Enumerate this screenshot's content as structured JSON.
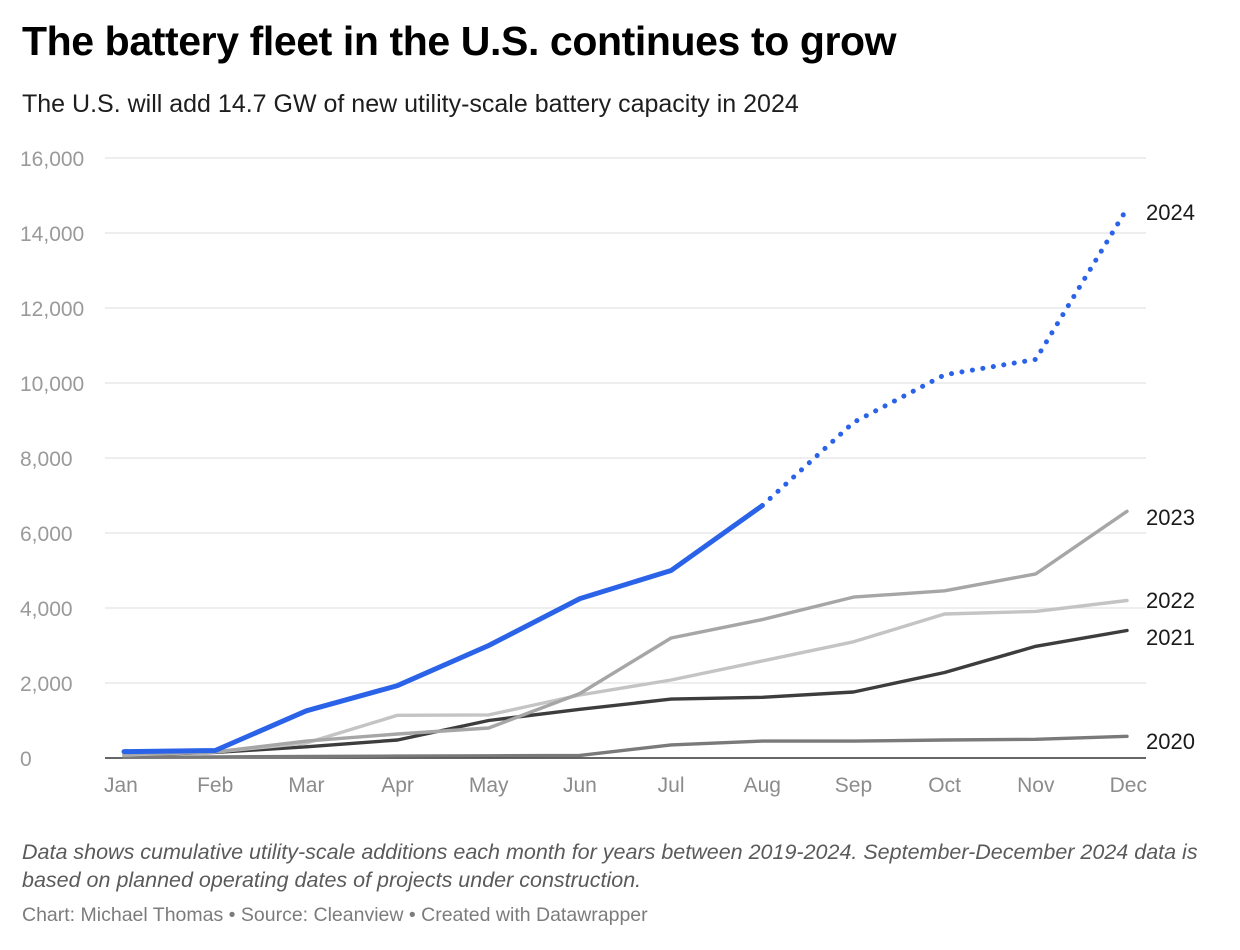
{
  "chart_data": {
    "type": "line",
    "title": "The battery fleet in the U.S. continues to grow",
    "subtitle": "The U.S. will add 14.7 GW of new utility-scale battery capacity in 2024",
    "xlabel": "",
    "ylabel": "",
    "categories": [
      "Jan",
      "Feb",
      "Mar",
      "Apr",
      "May",
      "Jun",
      "Jul",
      "Aug",
      "Sep",
      "Oct",
      "Nov",
      "Dec"
    ],
    "ylim": [
      0,
      16000
    ],
    "yticks": [
      0,
      2000,
      4000,
      6000,
      8000,
      10000,
      12000,
      14000,
      16000
    ],
    "ytick_labels": [
      "0",
      "2,000",
      "4,000",
      "6,000",
      "8,000",
      "10,000",
      "12,000",
      "14,000",
      "16,000"
    ],
    "grid": true,
    "series": [
      {
        "name": "2020",
        "color": "#7a7a7a",
        "values": [
          20,
          30,
          40,
          50,
          60,
          70,
          350,
          450,
          450,
          480,
          500,
          580
        ]
      },
      {
        "name": "2021",
        "color": "#3d3d3d",
        "values": [
          80,
          150,
          300,
          480,
          1000,
          1300,
          1570,
          1620,
          1760,
          2280,
          2980,
          3400
        ]
      },
      {
        "name": "2022",
        "color": "#c4c4c4",
        "values": [
          80,
          160,
          400,
          1140,
          1150,
          1680,
          2080,
          2590,
          3100,
          3840,
          3910,
          4200
        ]
      },
      {
        "name": "2023",
        "color": "#a6a6a6",
        "values": [
          100,
          160,
          450,
          640,
          800,
          1720,
          3200,
          3690,
          4290,
          4460,
          4910,
          6580
        ]
      },
      {
        "name": "2024",
        "color": "#2b63e8",
        "values": [
          170,
          200,
          1260,
          1930,
          3000,
          4250,
          5000,
          6730,
          8950,
          10220,
          10630,
          14650
        ],
        "planned_from_index": 7
      }
    ]
  },
  "footer": {
    "note": "Data shows cumulative utility-scale additions each month for years between 2019-2024. September-December 2024 data is based on planned operating dates of projects under construction.",
    "credit": "Chart: Michael Thomas • Source: Cleanview • Created with Datawrapper"
  }
}
